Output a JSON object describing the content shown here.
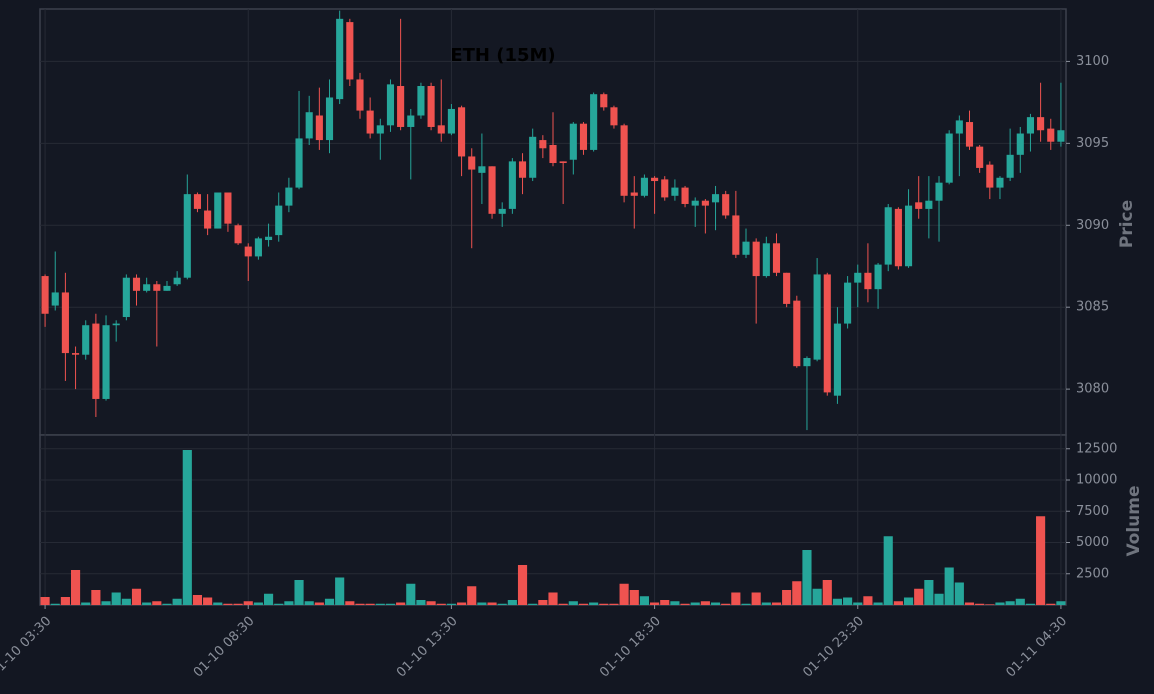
{
  "chart_data": {
    "type": "candlestick",
    "title": "ETH (15M)",
    "ylabel": "Price",
    "volume_label": "Volume",
    "up_color": "#26a69a",
    "down_color": "#ef5350",
    "grid": true,
    "xlim": [
      -0.5,
      100.5
    ],
    "xticks": [
      {
        "value": 0,
        "label": "01-10 03:30"
      },
      {
        "value": 20,
        "label": "01-10 08:30"
      },
      {
        "value": 40,
        "label": "01-10 13:30"
      },
      {
        "value": 60,
        "label": "01-10 18:30"
      },
      {
        "value": 80,
        "label": "01-10 23:30"
      },
      {
        "value": 100,
        "label": "01-11 04:30"
      }
    ],
    "ylim": [
      3077.2,
      3103.2
    ],
    "yticks": [
      3080,
      3085,
      3090,
      3095,
      3100
    ],
    "volume_ylim": [
      0,
      13600
    ],
    "volume_yticks": [
      2500,
      5000,
      7500,
      10000,
      12500
    ],
    "open": [
      3086.9,
      3085.1,
      3085.9,
      3082.2,
      3082.1,
      3084.0,
      3079.4,
      3083.9,
      3084.4,
      3086.8,
      3086.0,
      3086.4,
      3086.0,
      3086.4,
      3086.8,
      3091.9,
      3090.9,
      3089.8,
      3092.0,
      3090.0,
      3088.7,
      3088.1,
      3089.1,
      3089.4,
      3091.2,
      3092.3,
      3095.3,
      3096.7,
      3095.2,
      3097.7,
      3102.4,
      3098.9,
      3097.0,
      3095.6,
      3096.1,
      3098.5,
      3096.0,
      3096.7,
      3098.5,
      3096.1,
      3095.6,
      3097.2,
      3094.2,
      3093.2,
      3093.6,
      3090.7,
      3091.0,
      3093.9,
      3092.9,
      3095.2,
      3094.9,
      3093.9,
      3094.0,
      3096.2,
      3094.6,
      3098.0,
      3097.2,
      3096.1,
      3092.0,
      3091.8,
      3092.9,
      3092.8,
      3091.8,
      3092.3,
      3091.2,
      3091.5,
      3091.4,
      3091.9,
      3090.6,
      3088.2,
      3089.0,
      3086.9,
      3088.9,
      3087.1,
      3085.4,
      3081.4,
      3081.8,
      3087.0,
      3079.6,
      3084.0,
      3086.5,
      3087.1,
      3086.1,
      3087.6,
      3091.0,
      3087.5,
      3091.4,
      3091.0,
      3091.5,
      3092.6,
      3095.6,
      3096.3,
      3094.8,
      3093.7,
      3092.3,
      3092.9,
      3094.3,
      3095.6,
      3096.6,
      3095.9,
      3095.1
    ],
    "high": [
      3087.0,
      3088.4,
      3087.1,
      3082.6,
      3084.2,
      3084.6,
      3084.5,
      3084.2,
      3087.0,
      3087.0,
      3086.8,
      3086.6,
      3086.6,
      3087.2,
      3093.1,
      3092.0,
      3091.9,
      3092.0,
      3092.0,
      3090.1,
      3088.9,
      3089.3,
      3090.1,
      3092.0,
      3092.9,
      3098.2,
      3097.9,
      3098.4,
      3098.9,
      3103.1,
      3102.6,
      3099.3,
      3097.8,
      3096.5,
      3098.9,
      3102.6,
      3097.1,
      3098.7,
      3098.7,
      3098.9,
      3097.4,
      3097.3,
      3094.7,
      3095.6,
      3093.6,
      3091.4,
      3094.1,
      3094.4,
      3095.9,
      3095.5,
      3096.9,
      3093.9,
      3096.3,
      3096.3,
      3098.1,
      3098.1,
      3097.3,
      3096.2,
      3093.0,
      3093.1,
      3093.0,
      3093.0,
      3092.8,
      3092.4,
      3091.7,
      3091.6,
      3092.4,
      3092.1,
      3092.1,
      3089.8,
      3089.2,
      3089.3,
      3089.5,
      3087.1,
      3085.7,
      3082.0,
      3088.0,
      3087.1,
      3085.0,
      3086.9,
      3087.6,
      3088.9,
      3087.7,
      3091.3,
      3091.1,
      3092.2,
      3093.0,
      3093.0,
      3093.0,
      3095.8,
      3096.7,
      3097.0,
      3094.9,
      3093.9,
      3093.0,
      3095.9,
      3096.0,
      3096.8,
      3098.7,
      3096.5,
      3098.7
    ],
    "low": [
      3083.8,
      3084.8,
      3080.5,
      3080.0,
      3081.8,
      3078.3,
      3079.3,
      3082.9,
      3084.2,
      3085.1,
      3085.9,
      3082.6,
      3086.0,
      3086.3,
      3086.7,
      3090.8,
      3089.4,
      3089.8,
      3089.6,
      3088.8,
      3086.6,
      3087.9,
      3088.7,
      3089.0,
      3090.8,
      3092.2,
      3094.9,
      3094.6,
      3094.4,
      3097.4,
      3098.5,
      3096.5,
      3095.3,
      3094.0,
      3095.7,
      3095.8,
      3092.8,
      3096.5,
      3095.8,
      3095.1,
      3095.5,
      3093.0,
      3088.6,
      3091.3,
      3090.4,
      3089.9,
      3090.7,
      3091.9,
      3092.7,
      3094.1,
      3093.6,
      3091.3,
      3093.1,
      3094.3,
      3094.5,
      3097.0,
      3095.9,
      3091.4,
      3089.8,
      3091.7,
      3090.7,
      3091.5,
      3091.5,
      3091.1,
      3089.9,
      3089.5,
      3089.7,
      3090.4,
      3088.0,
      3088.0,
      3084.0,
      3086.8,
      3086.9,
      3085.0,
      3081.3,
      3077.5,
      3081.7,
      3079.6,
      3079.1,
      3083.7,
      3085.0,
      3085.3,
      3084.9,
      3087.2,
      3087.3,
      3087.4,
      3090.4,
      3089.2,
      3089.0,
      3092.5,
      3093.0,
      3094.6,
      3093.2,
      3091.6,
      3091.6,
      3092.7,
      3093.2,
      3094.5,
      3095.1,
      3094.6,
      3094.8
    ],
    "close": [
      3084.6,
      3085.9,
      3082.2,
      3082.1,
      3083.9,
      3079.4,
      3083.9,
      3084.0,
      3086.8,
      3086.0,
      3086.4,
      3086.0,
      3086.3,
      3086.8,
      3091.9,
      3091.0,
      3089.8,
      3092.0,
      3090.1,
      3088.9,
      3088.1,
      3089.2,
      3089.3,
      3091.2,
      3092.3,
      3095.3,
      3096.9,
      3095.2,
      3097.8,
      3102.6,
      3098.9,
      3097.0,
      3095.6,
      3096.1,
      3098.6,
      3096.0,
      3096.7,
      3098.5,
      3096.0,
      3095.6,
      3097.1,
      3094.2,
      3093.4,
      3093.6,
      3090.7,
      3091.0,
      3093.9,
      3092.9,
      3095.4,
      3094.7,
      3093.8,
      3093.8,
      3096.2,
      3094.6,
      3098.0,
      3097.2,
      3096.1,
      3091.8,
      3091.8,
      3092.9,
      3092.7,
      3091.7,
      3092.3,
      3091.3,
      3091.5,
      3091.2,
      3091.9,
      3090.6,
      3088.2,
      3089.0,
      3086.9,
      3088.9,
      3087.1,
      3085.2,
      3081.4,
      3081.9,
      3087.0,
      3079.8,
      3084.0,
      3086.5,
      3087.1,
      3086.1,
      3087.6,
      3091.1,
      3087.5,
      3091.2,
      3091.0,
      3091.5,
      3092.6,
      3095.6,
      3096.4,
      3094.8,
      3093.5,
      3092.3,
      3092.9,
      3094.3,
      3095.6,
      3096.6,
      3095.8,
      3095.1,
      3095.8
    ],
    "volume": [
      640,
      100,
      640,
      2800,
      200,
      1200,
      300,
      1000,
      500,
      1300,
      200,
      300,
      100,
      500,
      12400,
      800,
      600,
      200,
      100,
      100,
      300,
      200,
      900,
      100,
      300,
      2000,
      300,
      200,
      500,
      2200,
      300,
      100,
      100,
      100,
      100,
      200,
      1700,
      400,
      300,
      100,
      100,
      200,
      1500,
      200,
      200,
      100,
      400,
      3200,
      100,
      400,
      1000,
      100,
      300,
      100,
      200,
      100,
      100,
      1700,
      1200,
      700,
      200,
      400,
      300,
      100,
      200,
      300,
      200,
      100,
      1000,
      100,
      1000,
      200,
      200,
      1200,
      1900,
      4400,
      1300,
      2000,
      500,
      600,
      200,
      700,
      200,
      5500,
      300,
      600,
      1300,
      2000,
      900,
      3000,
      1800,
      200,
      100,
      50,
      200,
      300,
      500,
      100,
      7100,
      100,
      300
    ]
  }
}
